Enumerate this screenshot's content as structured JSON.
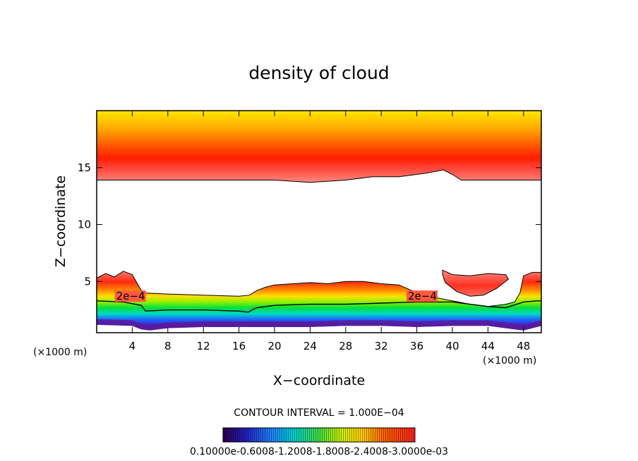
{
  "chart_data": {
    "type": "heatmap",
    "title": "density of cloud",
    "xlabel": "X−coordinate",
    "ylabel": "Z−coordinate",
    "x_unit_left": "(×1000 m)",
    "x_unit_right": "(×1000 m)",
    "xlim": [
      0,
      50
    ],
    "ylim": [
      0.5,
      20
    ],
    "x_ticks": [
      4,
      8,
      12,
      16,
      20,
      24,
      28,
      32,
      36,
      40,
      44,
      48
    ],
    "x_tick_labels": [
      "4",
      "8",
      "12",
      "16",
      "20",
      "24",
      "28",
      "32",
      "36",
      "40",
      "44",
      "48"
    ],
    "y_ticks": [
      5,
      10,
      15
    ],
    "y_tick_labels": [
      "5",
      "10",
      "15"
    ],
    "contour_labels": [
      {
        "text": "2e−4",
        "x": 2.2,
        "z": 3.4
      },
      {
        "text": "2e−4",
        "x": 35.0,
        "z": 3.4
      }
    ],
    "contour_interval_text": "CONTOUR INTERVAL = 1.000E−04",
    "colorbar": {
      "ticks_text": "0.10000e-0.6008-1.2008-1.8008-2.4008-3.0000e-03",
      "min": 0.0001,
      "max": 0.003
    },
    "upper_layer": {
      "top_z": 20,
      "base_z": [
        [
          0,
          13.9
        ],
        [
          8,
          13.9
        ],
        [
          16,
          13.9
        ],
        [
          20,
          13.9
        ],
        [
          24,
          13.7
        ],
        [
          28,
          13.9
        ],
        [
          31,
          14.2
        ],
        [
          34,
          14.2
        ],
        [
          37,
          14.5
        ],
        [
          39,
          14.8
        ],
        [
          40,
          14.4
        ],
        [
          41,
          13.9
        ],
        [
          50,
          13.9
        ]
      ],
      "peak_z": 16.0
    },
    "lower_layer": {
      "top_z": [
        [
          0,
          5.3
        ],
        [
          1,
          5.7
        ],
        [
          2,
          5.4
        ],
        [
          3,
          5.9
        ],
        [
          4,
          5.6
        ],
        [
          4.8,
          4.5
        ],
        [
          5.2,
          4.0
        ],
        [
          8,
          3.9
        ],
        [
          12,
          3.8
        ],
        [
          16,
          3.7
        ],
        [
          17.2,
          3.8
        ],
        [
          18,
          4.2
        ],
        [
          19,
          4.5
        ],
        [
          20,
          4.7
        ],
        [
          24,
          4.9
        ],
        [
          26,
          4.8
        ],
        [
          28,
          5.0
        ],
        [
          30,
          5.0
        ],
        [
          32,
          4.8
        ],
        [
          34,
          4.7
        ],
        [
          36,
          4.0
        ],
        [
          38,
          3.6
        ],
        [
          40,
          3.3
        ],
        [
          42,
          3.0
        ],
        [
          44,
          2.8
        ],
        [
          46,
          3.0
        ],
        [
          47,
          3.2
        ],
        [
          47.6,
          4.0
        ],
        [
          48,
          5.5
        ],
        [
          49,
          5.8
        ],
        [
          50,
          5.8
        ]
      ],
      "contour_2e4_z": [
        [
          0,
          3.3
        ],
        [
          3,
          3.2
        ],
        [
          5,
          2.9
        ],
        [
          5.5,
          2.4
        ],
        [
          8,
          2.5
        ],
        [
          12,
          2.5
        ],
        [
          16,
          2.4
        ],
        [
          17,
          2.3
        ],
        [
          18,
          2.7
        ],
        [
          20,
          2.9
        ],
        [
          24,
          3.0
        ],
        [
          28,
          3.0
        ],
        [
          32,
          3.1
        ],
        [
          36,
          3.2
        ],
        [
          40,
          3.2
        ],
        [
          42,
          3.0
        ],
        [
          44,
          2.8
        ],
        [
          46,
          2.7
        ],
        [
          48,
          3.2
        ],
        [
          49.5,
          3.3
        ],
        [
          50,
          3.3
        ]
      ],
      "base_z": [
        [
          0,
          1.2
        ],
        [
          4,
          1.1
        ],
        [
          5,
          0.8
        ],
        [
          6,
          0.7
        ],
        [
          8,
          0.9
        ],
        [
          12,
          1.0
        ],
        [
          16,
          1.0
        ],
        [
          20,
          1.0
        ],
        [
          24,
          1.0
        ],
        [
          28,
          1.1
        ],
        [
          32,
          1.1
        ],
        [
          36,
          1.0
        ],
        [
          40,
          1.1
        ],
        [
          44,
          1.1
        ],
        [
          47,
          0.8
        ],
        [
          48,
          0.7
        ],
        [
          50,
          1.1
        ]
      ]
    },
    "cap_cloud": {
      "outline": [
        [
          38.9,
          6.0
        ],
        [
          40,
          5.6
        ],
        [
          42,
          5.5
        ],
        [
          44,
          5.7
        ],
        [
          46,
          5.6
        ],
        [
          46.3,
          5.2
        ],
        [
          45,
          4.4
        ],
        [
          43.5,
          3.8
        ],
        [
          42,
          3.7
        ],
        [
          40.5,
          4.1
        ],
        [
          39.2,
          4.9
        ],
        [
          38.9,
          5.6
        ]
      ]
    }
  }
}
